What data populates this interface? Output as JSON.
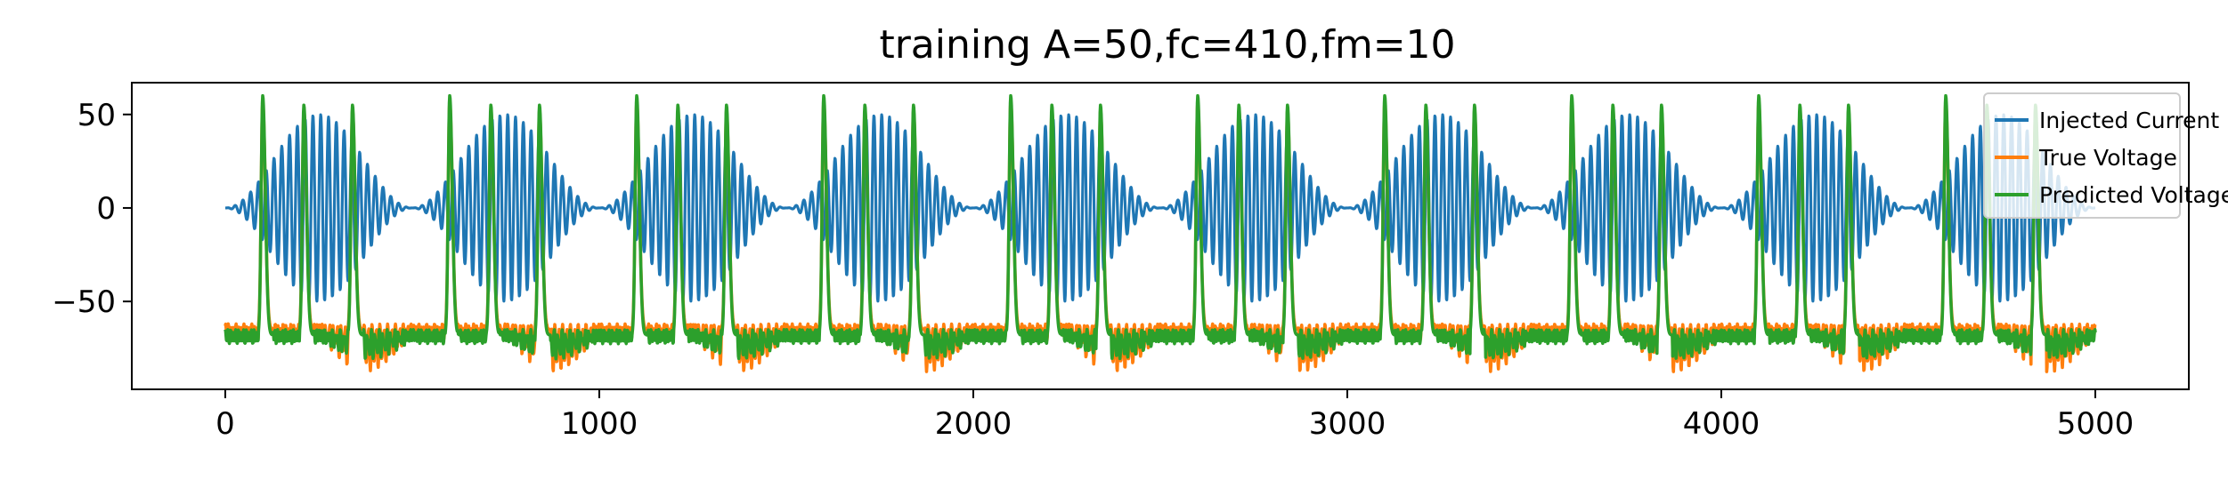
{
  "chart_data": {
    "type": "line",
    "title": "training A=50,fc=410,fm=10",
    "xlabel": "",
    "ylabel": "",
    "xlim": [
      -250,
      5250
    ],
    "ylim": [
      -97,
      67
    ],
    "xticks": [
      0,
      1000,
      2000,
      3000,
      4000,
      5000
    ],
    "xtick_labels": [
      "0",
      "1000",
      "2000",
      "3000",
      "4000",
      "5000"
    ],
    "yticks": [
      50,
      0,
      -50
    ],
    "ytick_labels": [
      "50",
      "0",
      "−50"
    ],
    "grid": false,
    "legend_position": "top-right",
    "series": [
      {
        "name": "Injected Current",
        "color": "#1f77b4",
        "model": "am-sine",
        "amplitude": 50,
        "carrier_frequency": 410,
        "modulation_frequency": 10,
        "x_range": [
          0,
          5000
        ],
        "visible_oscillations_per_burst": 24
      },
      {
        "name": "True Voltage",
        "color": "#ff7f0e",
        "baseline": -65,
        "trough_min": -87,
        "spike_peak": 57,
        "spike_times": [
          100,
          210,
          340,
          600,
          710,
          840,
          1100,
          1210,
          1340,
          1600,
          1710,
          1840,
          2100,
          2210,
          2340,
          2600,
          2710,
          2840,
          3100,
          3210,
          3340,
          3600,
          3710,
          3840,
          4100,
          4210,
          4340,
          4600,
          4710,
          4840
        ]
      },
      {
        "name": "Predicted Voltage",
        "color": "#2ca02c",
        "baseline": -68,
        "trough_min": -80,
        "spike_peak": 60,
        "spike_times": [
          100,
          210,
          340,
          600,
          710,
          840,
          1100,
          1210,
          1340,
          1600,
          1710,
          1840,
          2100,
          2210,
          2340,
          2600,
          2710,
          2840,
          3100,
          3210,
          3340,
          3600,
          3710,
          3840,
          4100,
          4210,
          4340,
          4600,
          4710,
          4840
        ]
      }
    ]
  }
}
